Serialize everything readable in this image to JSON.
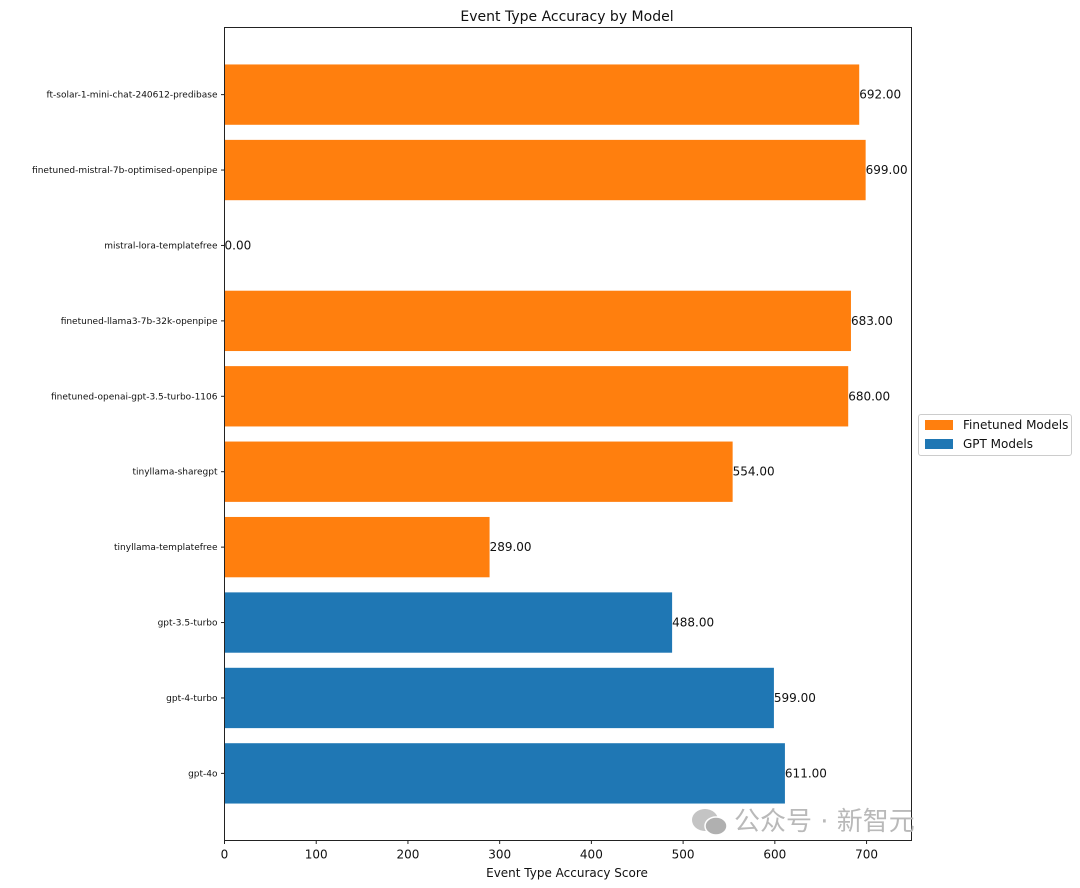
{
  "chart_data": {
    "type": "bar",
    "orientation": "horizontal",
    "title": "Event Type Accuracy by Model",
    "xlabel": "Event Type Accuracy Score",
    "ylabel": "",
    "xlim": [
      0,
      749
    ],
    "xticks": [
      0,
      100,
      200,
      300,
      400,
      500,
      600,
      700
    ],
    "grid": false,
    "legend_position": "center-right outside",
    "categories": [
      "ft-solar-1-mini-chat-240612-predibase",
      "finetuned-mistral-7b-optimised-openpipe",
      "mistral-lora-templatefree",
      "finetuned-llama3-7b-32k-openpipe",
      "finetuned-openai-gpt-3.5-turbo-1106",
      "tinyllama-sharegpt",
      "tinyllama-templatefree",
      "gpt-3.5-turbo",
      "gpt-4-turbo",
      "gpt-4o"
    ],
    "values": [
      692,
      699,
      0,
      683,
      680,
      554,
      289,
      488,
      599,
      611
    ],
    "data_labels": [
      "692.00",
      "699.00",
      "0.00",
      "683.00",
      "680.00",
      "554.00",
      "289.00",
      "488.00",
      "599.00",
      "611.00"
    ],
    "groups": [
      "Finetuned Models",
      "Finetuned Models",
      "Finetuned Models",
      "Finetuned Models",
      "Finetuned Models",
      "Finetuned Models",
      "Finetuned Models",
      "GPT Models",
      "GPT Models",
      "GPT Models"
    ],
    "series": [
      {
        "name": "Finetuned Models",
        "color": "#ff7f0e"
      },
      {
        "name": "GPT Models",
        "color": "#1f77b4"
      }
    ]
  },
  "watermark": {
    "text": "公众号 · 新智元",
    "icon": "wechat-icon"
  }
}
